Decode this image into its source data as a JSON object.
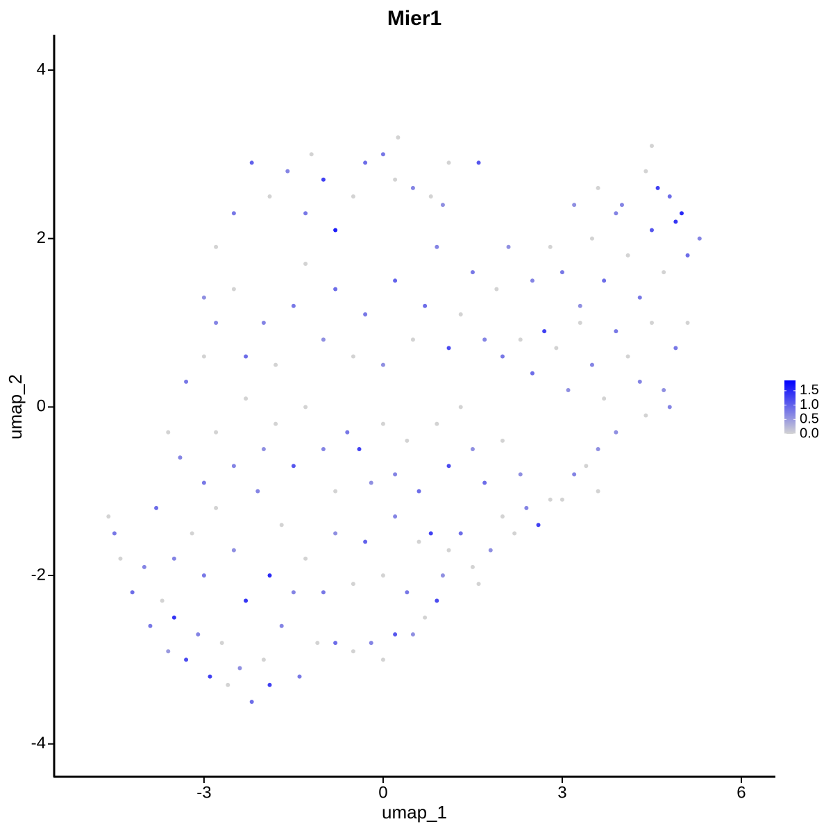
{
  "chart_data": {
    "type": "scatter",
    "title": "Mier1",
    "x_label": "umap_1",
    "y_label": "umap_2",
    "xlim": [
      -5.51,
      6.57
    ],
    "ylim": [
      -4.39,
      4.42
    ],
    "xticks": [
      -3,
      0,
      3,
      6
    ],
    "yticks": [
      -4,
      -2,
      0,
      2,
      4
    ],
    "colorscale": {
      "low": "#d3d3d3",
      "high": "#0000ff"
    },
    "colorlim": [
      0,
      1.86
    ],
    "colorticks": [
      {
        "value": 0,
        "label": "0.0"
      },
      0.5,
      {
        "value": 1,
        "label": "1.0"
      },
      1.5
    ],
    "x": [
      -4.6,
      -4.5,
      -4.4,
      -4.2,
      -4.0,
      -3.9,
      -3.7,
      -3.6,
      -3.5,
      -3.3,
      -3.1,
      -2.9,
      -2.7,
      -2.6,
      -2.4,
      -2.2,
      -2.0,
      -1.9,
      -1.7,
      -1.4,
      -1.1,
      -0.8,
      -0.5,
      -0.2,
      0.0,
      0.2,
      0.5,
      0.7,
      0.9,
      1.0,
      1.1,
      1.3,
      1.5,
      1.6,
      1.8,
      2.0,
      2.2,
      2.4,
      2.6,
      2.8,
      3.0,
      3.2,
      3.4,
      3.6,
      -3.8,
      -3.5,
      -3.2,
      -3.0,
      -2.8,
      -2.5,
      -2.3,
      -2.1,
      -1.9,
      -1.7,
      -1.5,
      -1.3,
      -1.0,
      -0.8,
      -0.5,
      -0.3,
      0.0,
      0.2,
      0.4,
      0.6,
      0.8,
      -3.4,
      -3.6,
      -3.0,
      -2.8,
      -2.5,
      -2.3,
      -2.0,
      -1.8,
      -1.5,
      -1.3,
      -1.0,
      -0.8,
      -0.6,
      -0.4,
      -0.2,
      0.0,
      0.2,
      0.4,
      0.6,
      0.9,
      1.1,
      1.3,
      1.5,
      1.7,
      2.0,
      2.3,
      -3.3,
      -3.0,
      -2.8,
      -2.5,
      -2.3,
      -2.0,
      -1.8,
      -1.5,
      -1.3,
      -1.0,
      -0.8,
      -0.5,
      -0.3,
      0.0,
      0.2,
      0.5,
      0.7,
      0.9,
      1.1,
      1.3,
      1.5,
      1.7,
      1.9,
      2.1,
      -3.0,
      -2.8,
      -2.5,
      -2.2,
      -1.9,
      -1.6,
      -1.3,
      -1.0,
      -0.8,
      -0.5,
      -0.3,
      0.0,
      0.2,
      0.5,
      0.8,
      1.0,
      1.1,
      1.6,
      -1.2,
      0.25,
      2.0,
      2.3,
      2.5,
      2.7,
      2.9,
      3.1,
      3.3,
      3.5,
      3.7,
      3.9,
      4.1,
      4.3,
      4.5,
      4.7,
      4.9,
      5.1,
      2.5,
      2.8,
      3.0,
      3.3,
      3.5,
      3.7,
      3.9,
      4.1,
      4.3,
      4.5,
      4.7,
      4.9,
      5.1,
      5.3,
      3.2,
      3.6,
      4.0,
      4.4,
      4.6,
      4.8,
      5.0,
      4.5,
      3.9,
      4.4,
      4.8,
      3.6
    ],
    "values": [
      -1.3,
      -1.5,
      -1.8,
      -2.2,
      -1.9,
      -2.6,
      -2.3,
      -2.9,
      -2.5,
      -3.0,
      -2.7,
      -3.2,
      -2.8,
      -3.3,
      -3.1,
      -3.5,
      -3.0,
      -3.3,
      -2.6,
      -3.2,
      -2.8,
      -2.8,
      -2.9,
      -2.8,
      -3.0,
      -2.7,
      -2.7,
      -2.5,
      -2.3,
      -2.0,
      -1.7,
      -1.5,
      -1.9,
      -2.1,
      -1.7,
      -1.3,
      -1.5,
      -1.2,
      -1.4,
      -1.1,
      -1.1,
      -0.8,
      -0.7,
      -0.5,
      -1.2,
      -1.8,
      -1.5,
      -2.0,
      -1.2,
      -1.7,
      -2.3,
      -1.0,
      -2.0,
      -1.4,
      -2.2,
      -1.8,
      -2.2,
      -1.5,
      -2.1,
      -1.6,
      -2.0,
      -1.3,
      -2.2,
      -1.6,
      -1.5,
      -0.6,
      -0.3,
      -0.9,
      -0.3,
      -0.7,
      0.1,
      -0.5,
      -0.2,
      -0.7,
      0.0,
      -0.5,
      -1.0,
      -0.3,
      -0.5,
      -0.9,
      -0.2,
      -0.8,
      -0.4,
      -1.0,
      -0.2,
      -0.7,
      0.0,
      -0.5,
      -0.9,
      -0.4,
      -0.8,
      0.3,
      0.6,
      1.0,
      1.4,
      0.6,
      1.0,
      0.5,
      1.2,
      1.7,
      0.8,
      1.4,
      0.6,
      1.1,
      0.5,
      1.5,
      0.8,
      1.2,
      1.9,
      0.7,
      1.1,
      1.6,
      0.8,
      1.4,
      1.9,
      1.3,
      1.9,
      2.3,
      2.9,
      2.5,
      2.8,
      2.3,
      2.7,
      2.1,
      2.5,
      2.9,
      3.0,
      2.7,
      2.6,
      2.5,
      2.4,
      2.9,
      2.9,
      3.0,
      3.2,
      0.6,
      0.8,
      0.4,
      0.9,
      0.7,
      0.2,
      1.0,
      0.5,
      0.1,
      0.9,
      0.6,
      0.3,
      1.0,
      0.2,
      0.7,
      1.0,
      1.5,
      1.9,
      1.6,
      1.2,
      2.0,
      1.5,
      2.3,
      1.8,
      1.3,
      2.1,
      1.6,
      2.2,
      1.8,
      2.0,
      2.4,
      2.6,
      2.4,
      2.8,
      2.6,
      2.5,
      2.3,
      3.1,
      -0.3,
      -0.1,
      0.0,
      -1.0
    ],
    "expression": [
      0,
      0.8,
      0,
      0.9,
      0.7,
      0.8,
      0,
      0.5,
      1.4,
      1.2,
      0.7,
      1.3,
      0,
      0,
      0.6,
      0.9,
      0,
      1.3,
      0.7,
      0.8,
      0,
      0.9,
      0,
      0.7,
      0,
      1.1,
      0.6,
      0,
      1.2,
      0.6,
      0,
      0.9,
      0,
      0,
      0.6,
      0,
      0,
      0.7,
      1.3,
      0,
      0,
      0.7,
      0,
      0.6,
      0.9,
      0.7,
      0,
      0.8,
      0,
      0.6,
      1.4,
      0.7,
      1.5,
      0,
      0.7,
      0,
      0.8,
      0.6,
      0,
      1.0,
      0,
      0.7,
      0.8,
      0,
      1.3,
      0.7,
      0,
      0.8,
      0,
      0.7,
      0,
      0.6,
      0,
      1.1,
      0,
      0.7,
      0,
      0.8,
      1.3,
      0.6,
      0,
      0.7,
      0,
      0.9,
      0,
      1.2,
      0,
      0.6,
      0.9,
      0,
      0.6,
      0.8,
      0,
      0.7,
      0,
      0.9,
      0.7,
      0,
      0.8,
      0,
      0.6,
      0.9,
      0,
      0.8,
      0.6,
      1.0,
      0,
      0.9,
      0.7,
      1.2,
      0,
      0.8,
      0.7,
      0,
      0.6,
      0.6,
      0,
      0.8,
      1.0,
      0,
      0.7,
      0.8,
      1.3,
      1.6,
      0,
      0.9,
      0.8,
      0,
      0.7,
      0,
      0.6,
      0,
      1.1,
      0,
      0,
      0.8,
      0,
      0.9,
      1.3,
      0,
      0.6,
      0,
      0.7,
      0,
      0.8,
      0,
      0.7,
      0,
      0.6,
      0.8,
      0,
      0.7,
      0,
      0.8,
      0.6,
      0,
      0.9,
      0.7,
      0,
      0.8,
      1.1,
      0,
      1.4,
      0.9,
      0.7,
      0.6,
      0,
      0.7,
      0,
      1.3,
      0.9,
      1.5,
      0,
      0.6,
      0,
      0.7,
      0
    ]
  }
}
